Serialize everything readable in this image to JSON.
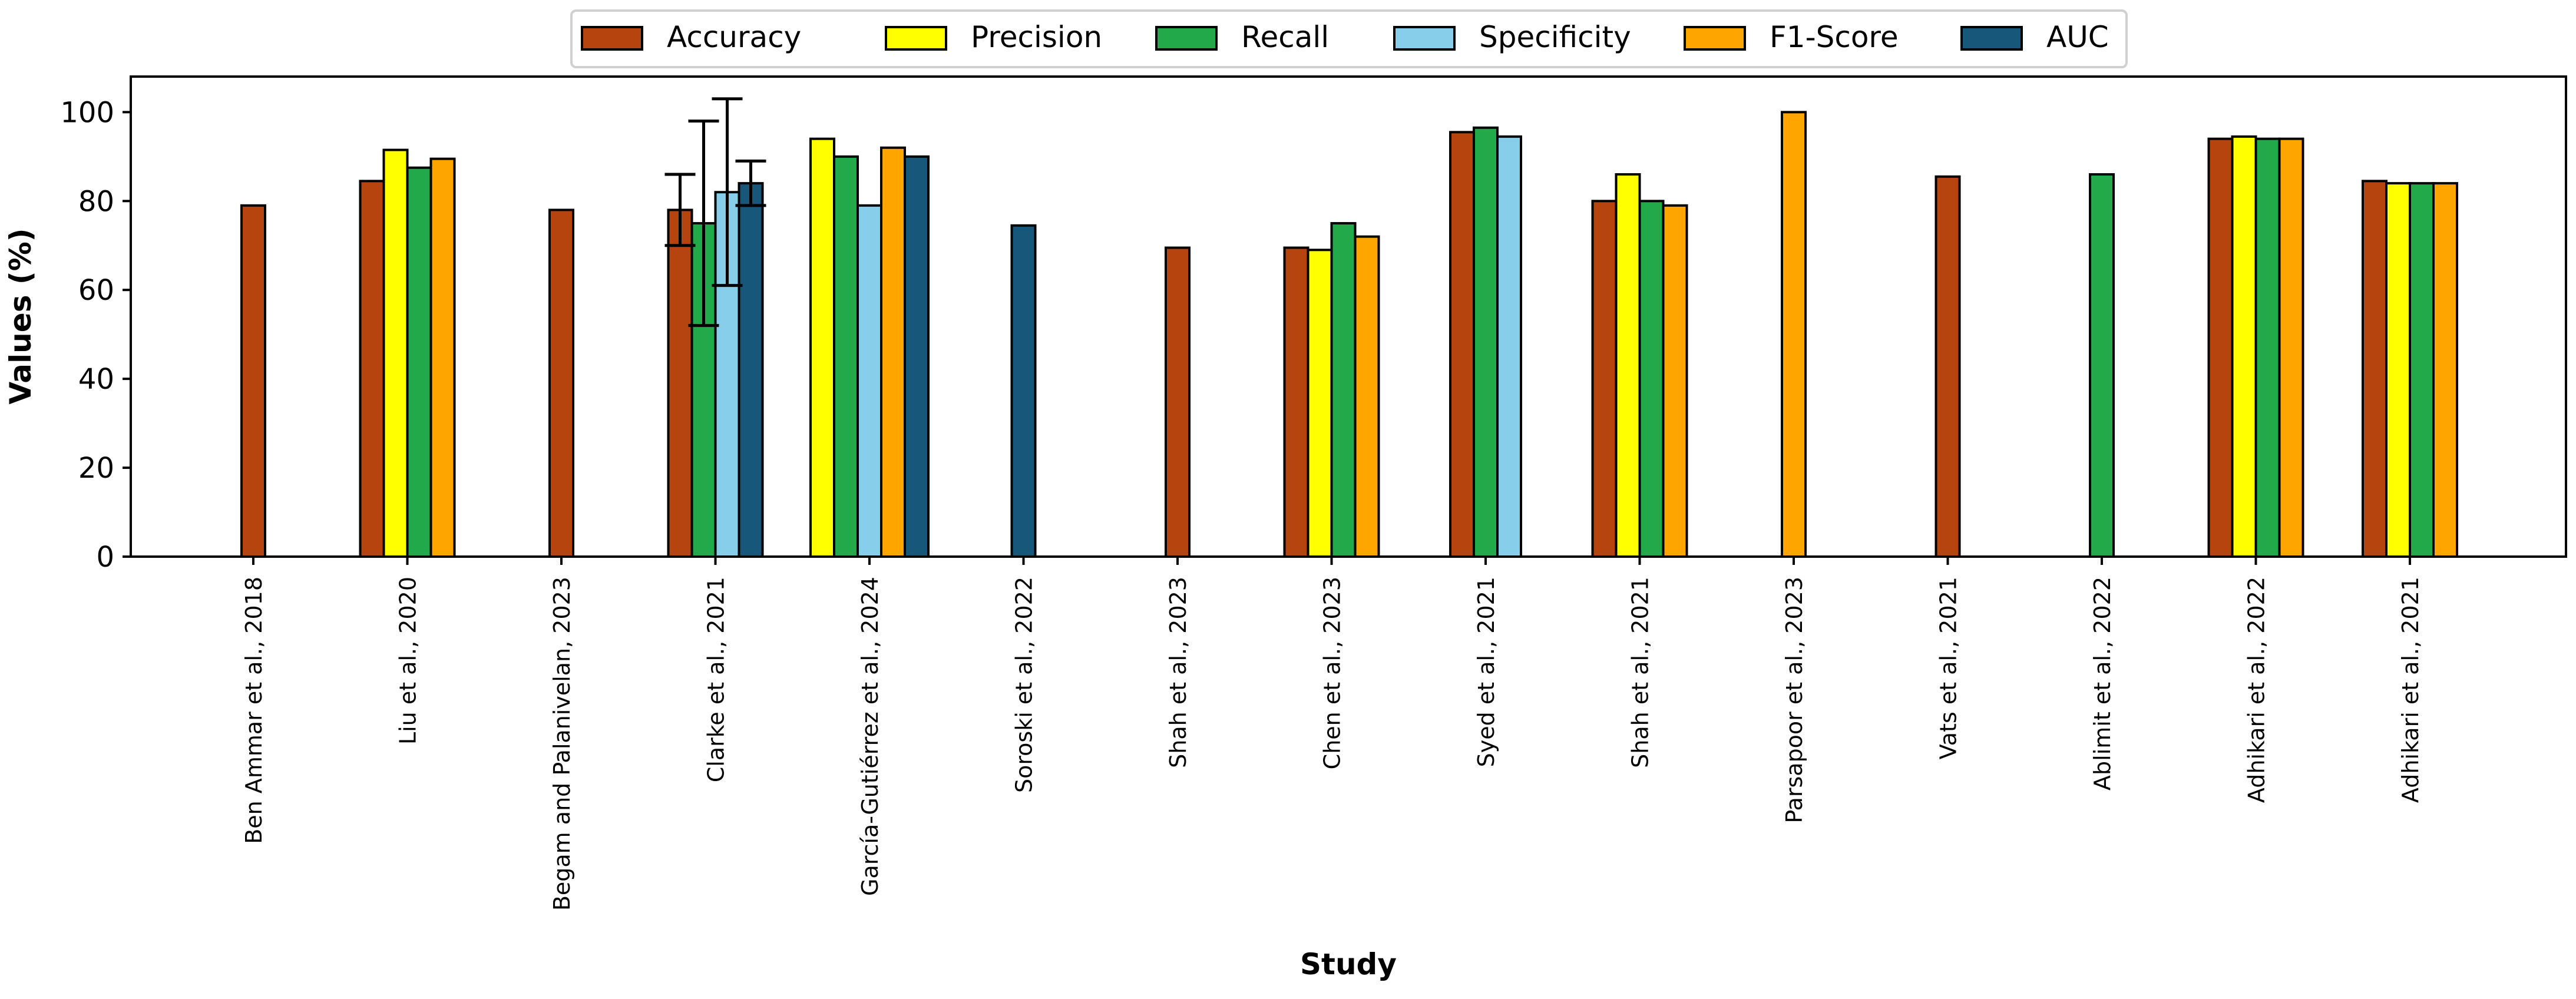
{
  "chart_data": {
    "type": "bar",
    "title": "",
    "xlabel": "Study",
    "ylabel": "Values (%)",
    "ylim": [
      0,
      108
    ],
    "yticks": [
      0,
      20,
      40,
      60,
      80,
      100
    ],
    "grid": false,
    "legend_position": "top-center",
    "categories": [
      "Ben Ammar et al., 2018",
      "Liu et al., 2020",
      "Begam and Palanivelan, 2023",
      "Clarke et al., 2021",
      "García-Gutiérrez et al., 2024",
      "Soroski et al., 2022",
      "Shah et al., 2023",
      "Chen et al., 2023",
      "Syed et al., 2021",
      "Shah et al., 2021",
      "Parsapoor et al., 2023",
      "Vats et al., 2021",
      "Ablimit et al., 2022",
      "Adhikari et al., 2022",
      "Adhikari et al., 2021"
    ],
    "series": [
      {
        "name": "Accuracy",
        "color": "#b5440f",
        "values": [
          79,
          84.5,
          78,
          78,
          null,
          null,
          69.5,
          69.5,
          95.5,
          80,
          null,
          85.5,
          null,
          94,
          84.5
        ],
        "errors": [
          null,
          null,
          null,
          8,
          null,
          null,
          null,
          null,
          null,
          null,
          null,
          null,
          null,
          null,
          null
        ]
      },
      {
        "name": "Precision",
        "color": "#ffff00",
        "values": [
          null,
          91.5,
          null,
          null,
          94,
          null,
          null,
          69,
          null,
          86,
          null,
          null,
          null,
          94.5,
          84
        ],
        "errors": [
          null,
          null,
          null,
          null,
          null,
          null,
          null,
          null,
          null,
          null,
          null,
          null,
          null,
          null,
          null
        ]
      },
      {
        "name": "Recall",
        "color": "#22a94a",
        "values": [
          null,
          87.5,
          null,
          75,
          90,
          null,
          null,
          75,
          96.5,
          80,
          null,
          null,
          86,
          94,
          84
        ],
        "errors": [
          null,
          null,
          null,
          23,
          null,
          null,
          null,
          null,
          null,
          null,
          null,
          null,
          null,
          null,
          null
        ]
      },
      {
        "name": "Specificity",
        "color": "#87ceeb",
        "values": [
          null,
          null,
          null,
          82,
          79,
          null,
          null,
          null,
          94.5,
          null,
          null,
          null,
          null,
          null,
          null
        ],
        "errors": [
          null,
          null,
          null,
          21,
          null,
          null,
          null,
          null,
          null,
          null,
          null,
          null,
          null,
          null,
          null
        ]
      },
      {
        "name": "F1-Score",
        "color": "#ffa500",
        "values": [
          null,
          89.5,
          null,
          null,
          92,
          null,
          null,
          72,
          null,
          79,
          100,
          null,
          null,
          94,
          84
        ],
        "errors": [
          null,
          null,
          null,
          null,
          null,
          null,
          null,
          null,
          null,
          null,
          null,
          null,
          null,
          null,
          null
        ]
      },
      {
        "name": "AUC",
        "color": "#17587a",
        "values": [
          null,
          null,
          null,
          84,
          90,
          74.5,
          null,
          null,
          null,
          null,
          null,
          null,
          null,
          null,
          null
        ],
        "errors": [
          null,
          null,
          null,
          5,
          null,
          null,
          null,
          null,
          null,
          null,
          null,
          null,
          null,
          null,
          null
        ]
      }
    ]
  }
}
